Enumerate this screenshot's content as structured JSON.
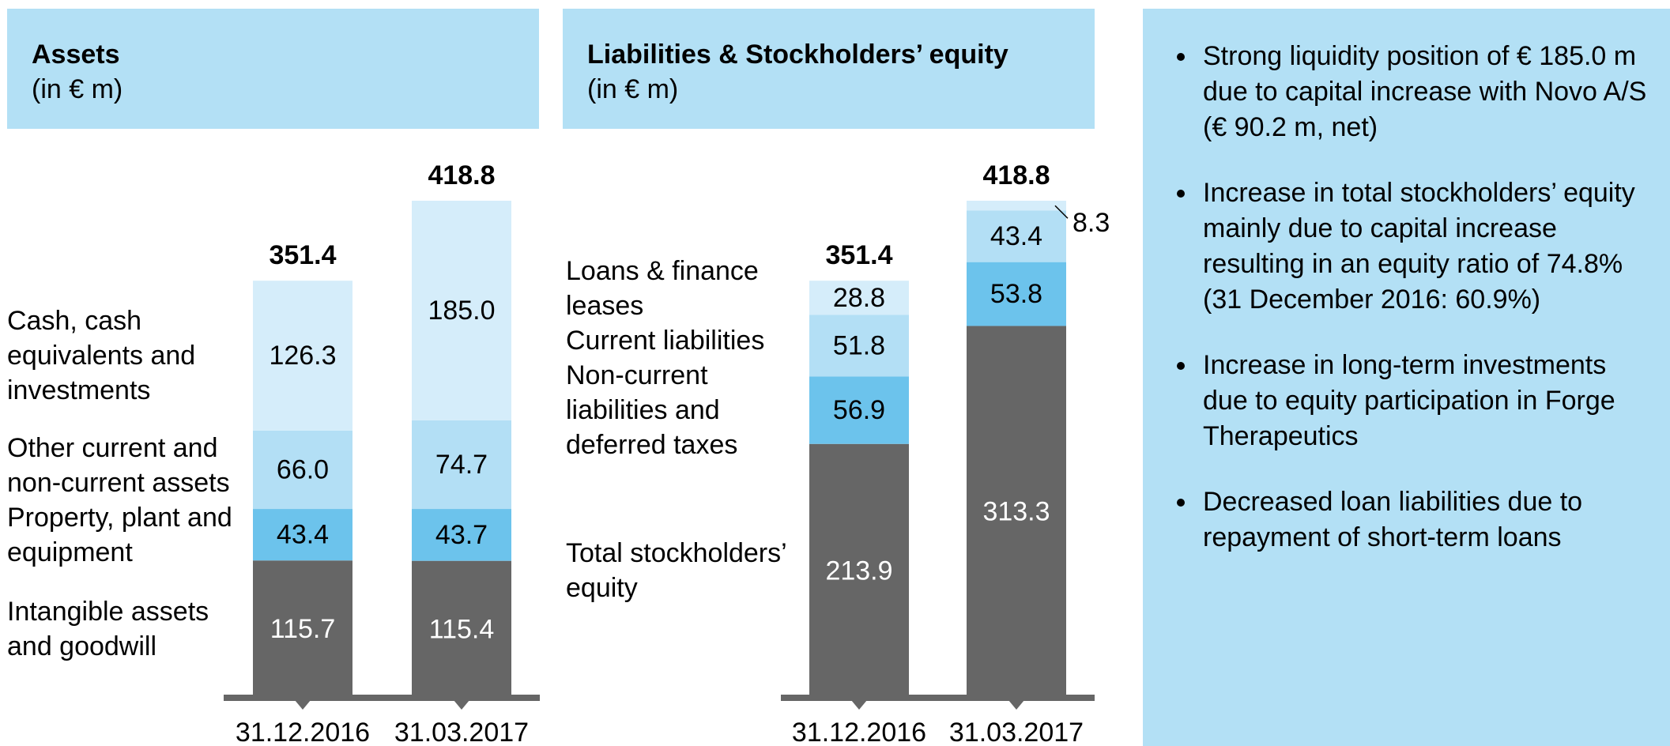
{
  "chart_data": [
    {
      "type": "stacked-bar",
      "title": "Assets",
      "subtitle": "(in € m)",
      "categories": [
        "31.12.2016",
        "31.03.2017"
      ],
      "totals": [
        351.4,
        418.8
      ],
      "series": [
        {
          "name": "Intangible assets and goodwill",
          "color": "#666666",
          "values": [
            115.7,
            115.4
          ]
        },
        {
          "name": "Property, plant and equipment",
          "color": "#6cc3ec",
          "values": [
            43.4,
            43.7
          ]
        },
        {
          "name": "Other current and non-current assets",
          "color": "#b3dff5",
          "values": [
            66.0,
            74.7
          ],
          "value_labels": [
            "66.0",
            "74.7"
          ]
        },
        {
          "name": "Cash, cash equivalents and investments",
          "color": "#d5edfa",
          "values": [
            126.3,
            185.0
          ],
          "value_labels": [
            "126.3",
            "185.0"
          ]
        }
      ]
    },
    {
      "type": "stacked-bar",
      "title": "Liabilities & Stockholders’ equity",
      "subtitle": "(in € m)",
      "categories": [
        "31.12.2016",
        "31.03.2017"
      ],
      "totals": [
        351.4,
        418.8
      ],
      "series": [
        {
          "name": "Total stockholders’ equity",
          "color": "#666666",
          "values": [
            213.9,
            313.3
          ]
        },
        {
          "name": "Non-current liabilities and deferred taxes",
          "color": "#6cc3ec",
          "values": [
            56.9,
            53.8
          ]
        },
        {
          "name": "Current liabilities",
          "color": "#b3dff5",
          "values": [
            51.8,
            43.4
          ]
        },
        {
          "name": "Loans & finance leases",
          "color": "#d5edfa",
          "values": [
            28.8,
            8.3
          ]
        }
      ]
    }
  ],
  "notes": {
    "bullets": [
      "Strong liquidity position of € 185.0 m due to capital increase with Novo A/S (€ 90.2 m, net)",
      "Increase in total stockholders’ equity mainly due to capital increase resulting in an equity ratio of 74.8% (31 December 2016: 60.9%)",
      "Increase in long-term investments due to equity participation in Forge Therapeutics",
      "Decreased loan liabilities due to repayment of short-term loans"
    ]
  }
}
